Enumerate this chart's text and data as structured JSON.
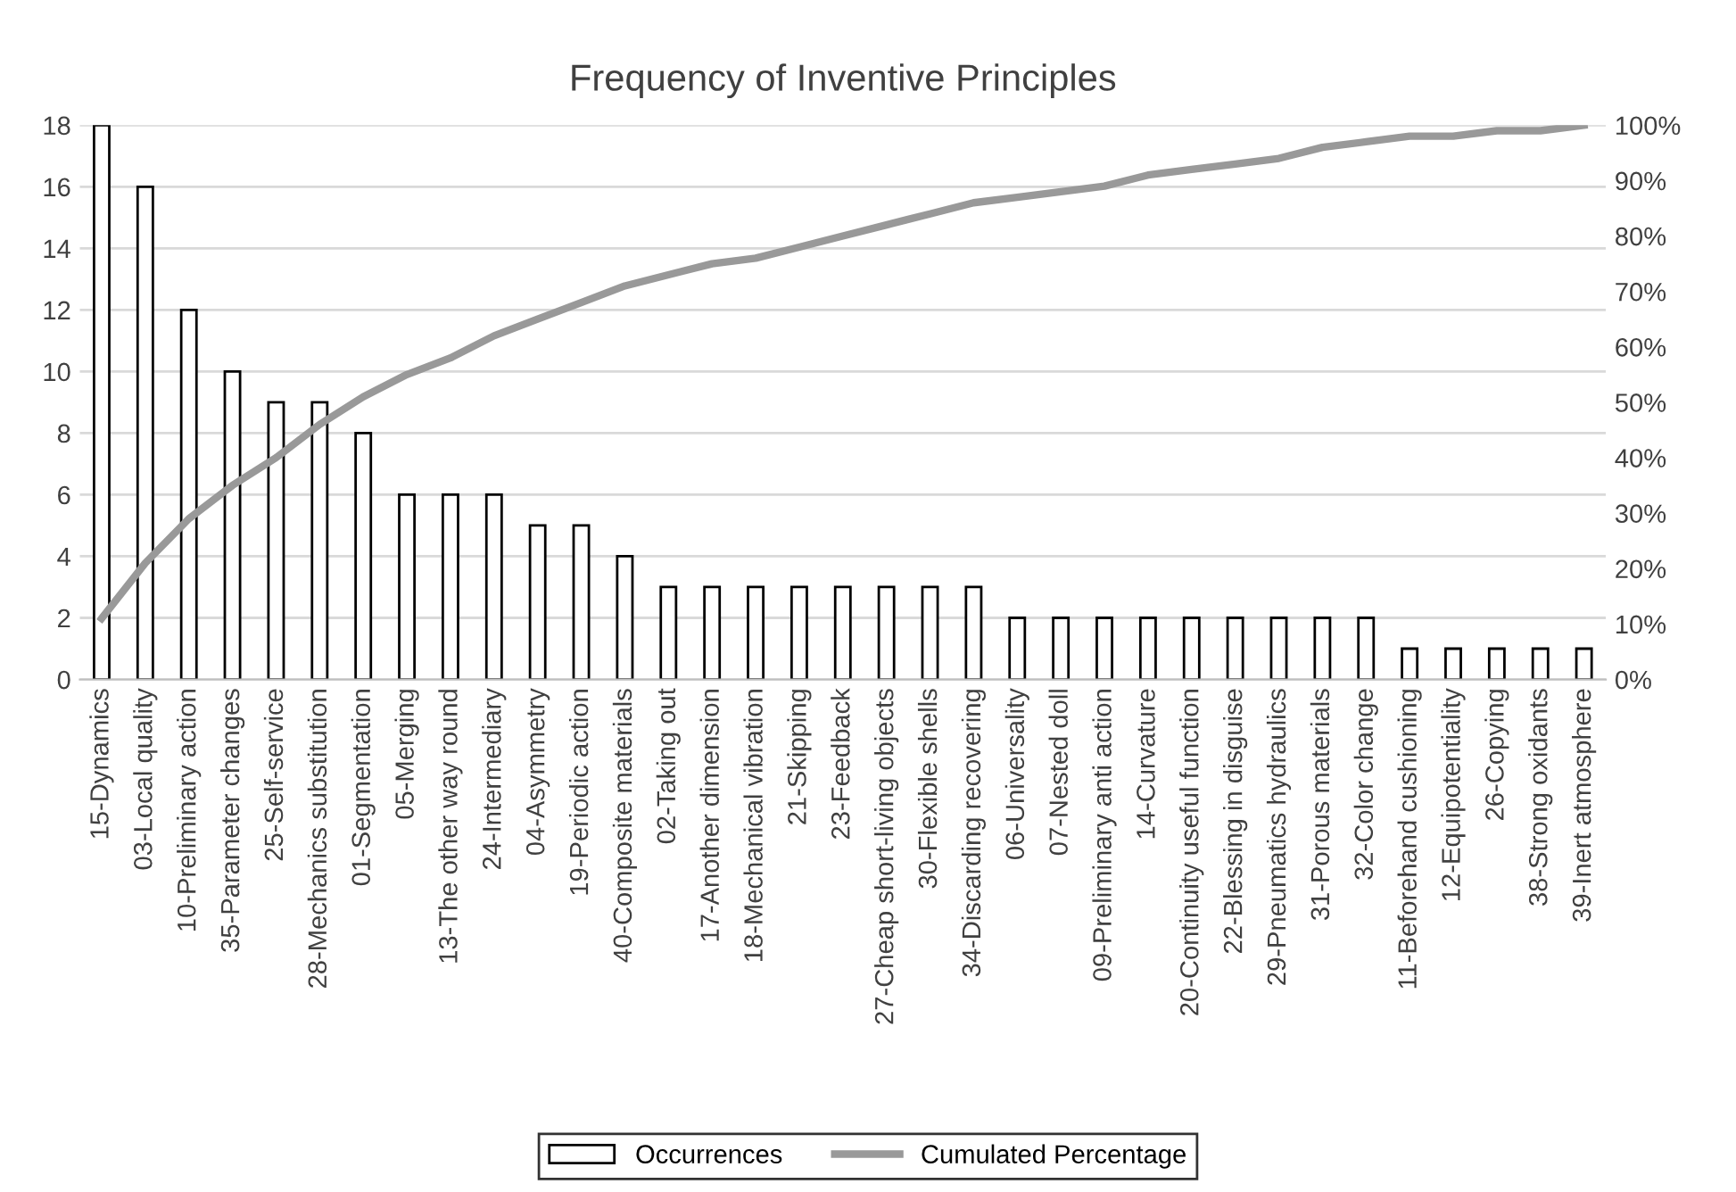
{
  "chart_data": {
    "type": "bar",
    "title": "Frequency of Inventive Principles",
    "categories": [
      "15-Dynamics",
      "03-Local quality",
      "10-Preliminary action",
      "35-Parameter changes",
      "25-Self-service",
      "28-Mechanics substitution",
      "01-Segmentation",
      "05-Merging",
      "13-The other way round",
      "24-Intermediary",
      "04-Asymmetry",
      "19-Periodic action",
      "40-Composite materials",
      "02-Taking out",
      "17-Another dimension",
      "18-Mechanical vibration",
      "21-Skipping",
      "23-Feedback",
      "27-Cheap short-living objects",
      "30-Flexible shells",
      "34-Discarding recovering",
      "06-Universality",
      "07-Nested doll",
      "09-Preliminary anti action",
      "14-Curvature",
      "20-Continuity useful function",
      "22-Blessing in disguise",
      "29-Pneumatics hydraulics",
      "31-Porous materials",
      "32-Color change",
      "11-Beforehand cushioning",
      "12-Equipotentiality",
      "26-Copying",
      "38-Strong oxidants",
      "39-Inert atmosphere"
    ],
    "series": [
      {
        "name": "Occurrences",
        "color": "#ffffff",
        "values": [
          18,
          16,
          12,
          10,
          9,
          9,
          8,
          6,
          6,
          6,
          5,
          5,
          4,
          3,
          3,
          3,
          3,
          3,
          3,
          3,
          3,
          2,
          2,
          2,
          2,
          2,
          2,
          2,
          2,
          2,
          1,
          1,
          1,
          1,
          1
        ]
      },
      {
        "name": "Cumulated Percentage",
        "type": "line",
        "axis": "y2",
        "color": "#999999",
        "values": [
          11,
          21,
          29,
          35,
          40,
          46,
          51,
          55,
          58,
          62,
          65,
          68,
          71,
          73,
          75,
          76,
          78,
          80,
          82,
          84,
          86,
          87,
          88,
          89,
          91,
          92,
          93,
          94,
          96,
          97,
          98,
          98,
          99,
          99,
          100
        ]
      }
    ],
    "ylim": [
      0,
      18
    ],
    "yticks": [
      0,
      2,
      4,
      6,
      8,
      10,
      12,
      14,
      16,
      18
    ],
    "y2lim": [
      0,
      100
    ],
    "y2ticks": [
      {
        "value": 0,
        "label": "0%"
      },
      {
        "value": 10,
        "label": "10%"
      },
      {
        "value": 20,
        "label": "20%"
      },
      {
        "value": 30,
        "label": "30%"
      },
      {
        "value": 40,
        "label": "40%"
      },
      {
        "value": 50,
        "label": "50%"
      },
      {
        "value": 60,
        "label": "60%"
      },
      {
        "value": 70,
        "label": "70%"
      },
      {
        "value": 80,
        "label": "80%"
      },
      {
        "value": 90,
        "label": "90%"
      },
      {
        "value": 100,
        "label": "100%"
      }
    ],
    "grid": "y",
    "legend": "bottom"
  }
}
